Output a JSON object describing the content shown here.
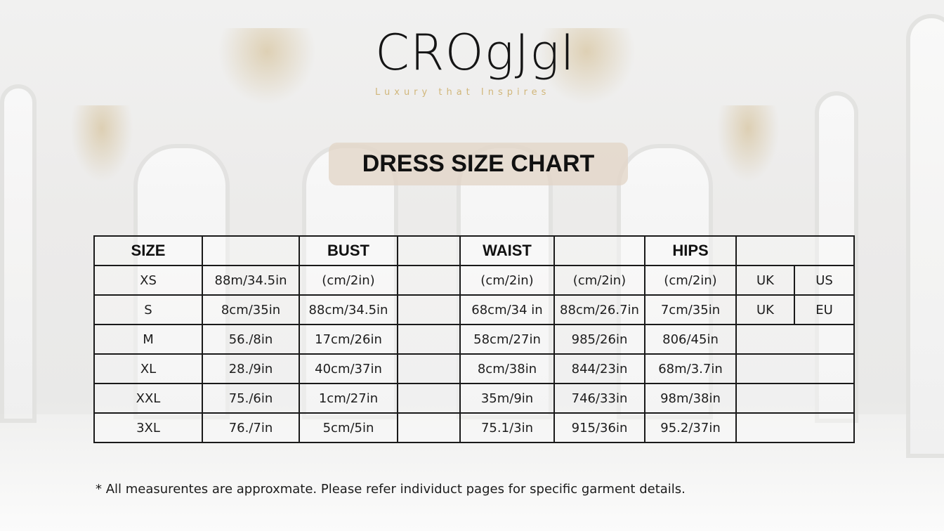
{
  "brand": {
    "logo_text": "CROgJgI",
    "tagline": "Luxury that Inspires",
    "accent_color": "#d1b67a"
  },
  "title": "DRESS SIZE CHART",
  "table": {
    "header": [
      "SIZE",
      "",
      "BUST",
      "",
      "WAIST",
      "",
      "HIPS",
      ""
    ],
    "rows": [
      [
        "XS",
        "88m/34.5in",
        "(cm/2in)",
        "",
        "(cm/2in)",
        "(cm/2in)",
        "(cm/2in)",
        "UK",
        "US"
      ],
      [
        "S",
        "8cm/35in",
        "88cm/34.5in",
        "",
        "68cm/34 in",
        "88cm/26.7in",
        "7cm/35in",
        "UK",
        "EU"
      ],
      [
        "M",
        "56./8in",
        "17cm/26in",
        "",
        "58cm/27in",
        "985/26in",
        "806/45in",
        ""
      ],
      [
        "XL",
        "28./9in",
        "40cm/37in",
        "",
        "8cm/38in",
        "844/23in",
        "68m/3.7in",
        ""
      ],
      [
        "XXL",
        "75./6in",
        "1cm/27in",
        "",
        "35m/9in",
        "746/33in",
        "98m/38in",
        ""
      ],
      [
        "3XL",
        "76./7in",
        "5cm/5in",
        "",
        "75.1/3in",
        "915/36in",
        "95.2/37in",
        ""
      ]
    ]
  },
  "footnote": "* All measurentes are approxmate. Please refer individuct pages for specific garment details."
}
